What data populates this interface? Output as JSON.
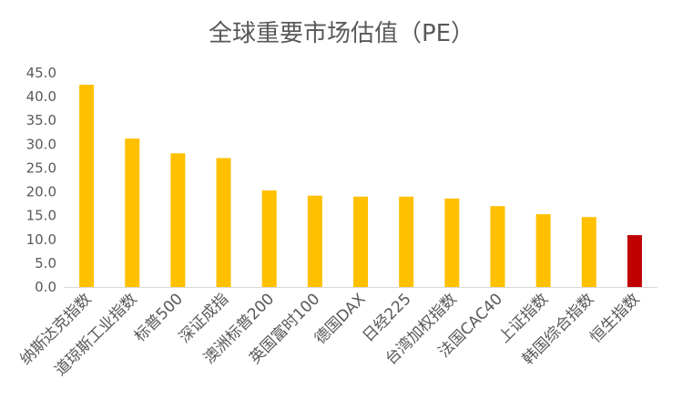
{
  "chart_data": {
    "type": "bar",
    "title": "全球重要市场估值（PE）",
    "categories": [
      "纳斯达克指数",
      "道琼斯工业指数",
      "标普500",
      "深证成指",
      "澳洲标普200",
      "英国富时100",
      "德国DAX",
      "日经225",
      "台湾加权指数",
      "法国CAC40",
      "上证指数",
      "韩国综合指数",
      "恒生指数"
    ],
    "values": [
      42.5,
      31.2,
      28.1,
      27.1,
      20.3,
      19.2,
      19.0,
      19.0,
      18.6,
      17.0,
      15.3,
      14.7,
      10.9
    ],
    "y_ticks": [
      "0.0",
      "5.0",
      "10.0",
      "15.0",
      "20.0",
      "25.0",
      "30.0",
      "35.0",
      "40.0",
      "45.0"
    ],
    "ylim": [
      0,
      45
    ],
    "grid": false,
    "legend": "none",
    "colors": {
      "default_bar": "#FFC000",
      "highlight_bar": "#C00000",
      "highlight_category": "恒生指数",
      "axis": "#D9D9D9",
      "text": "#595959"
    }
  }
}
